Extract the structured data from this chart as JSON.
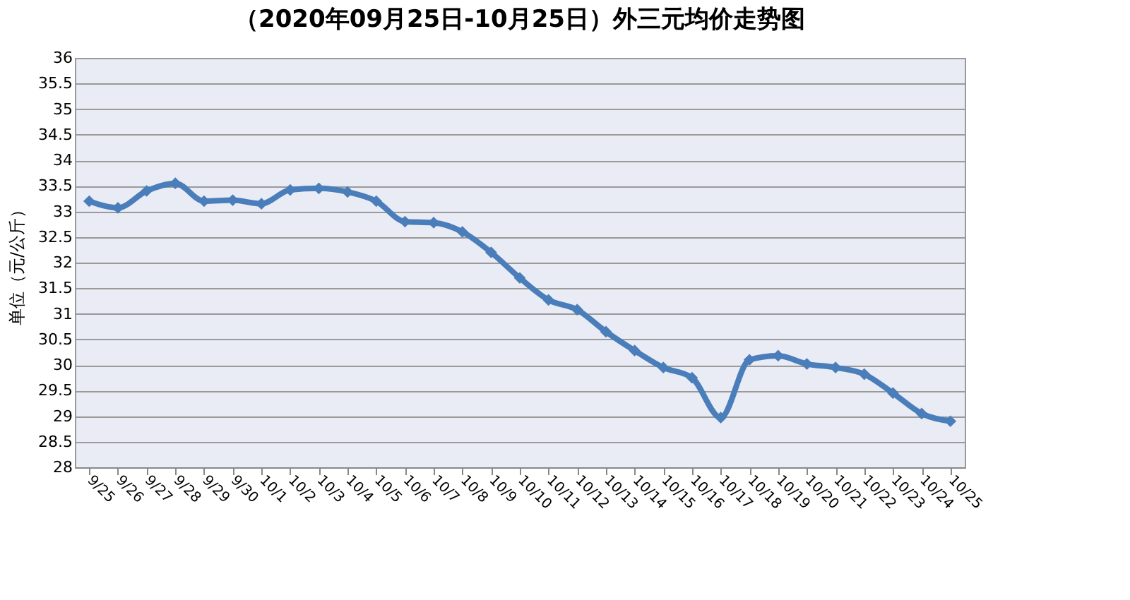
{
  "chart_data": {
    "type": "line",
    "title": "（2020年09月25日-10月25日）外三元均价走势图",
    "ylabel": "单位（元/公斤）",
    "categories": [
      "9/25",
      "9/26",
      "9/27",
      "9/28",
      "9/29",
      "9/30",
      "10/1",
      "10/2",
      "10/3",
      "10/4",
      "10/5",
      "10/6",
      "10/7",
      "10/8",
      "10/9",
      "10/10",
      "10/11",
      "10/12",
      "10/13",
      "10/14",
      "10/15",
      "10/16",
      "10/17",
      "10/18",
      "10/19",
      "10/20",
      "10/21",
      "10/22",
      "10/23",
      "10/24",
      "10/25"
    ],
    "series": [
      {
        "color": "#4a7ebb",
        "values": [
          33.2,
          33.07,
          33.4,
          33.55,
          33.2,
          33.22,
          33.15,
          33.42,
          33.45,
          33.38,
          33.2,
          32.8,
          32.78,
          32.6,
          32.2,
          31.7,
          31.27,
          31.08,
          30.65,
          30.28,
          29.95,
          29.75,
          28.97,
          30.1,
          30.18,
          30.02,
          29.95,
          29.82,
          29.45,
          29.05,
          28.9
        ]
      }
    ],
    "ylim": [
      28,
      36
    ],
    "yticks": [
      28,
      28.5,
      29,
      29.5,
      30,
      30.5,
      31,
      31.5,
      32,
      32.5,
      33,
      33.5,
      34,
      34.5,
      35,
      35.5,
      36
    ],
    "grid": "y",
    "marker": "diamond",
    "line_style": "solid"
  }
}
